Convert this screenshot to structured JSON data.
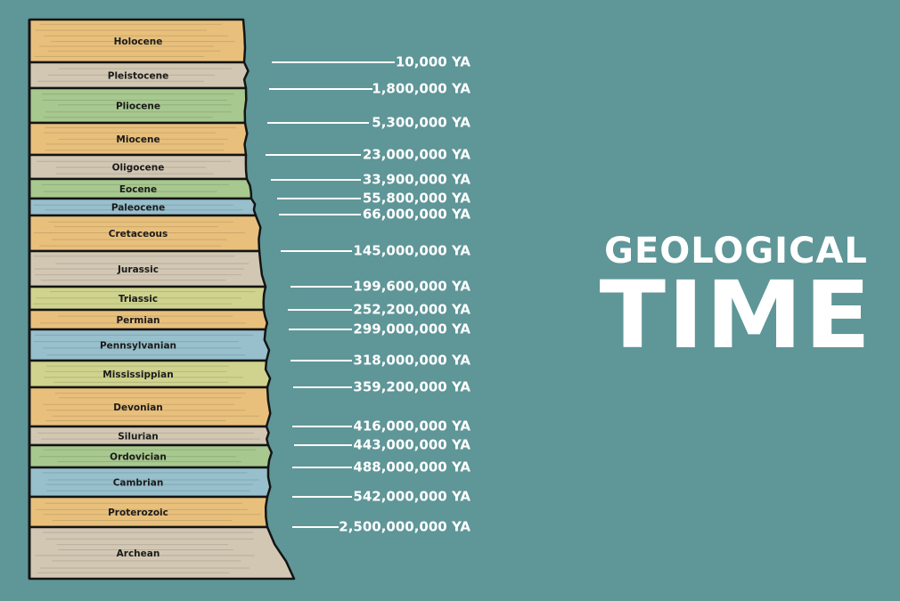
{
  "title": {
    "line1": "GEOLOGICAL",
    "line2": "TIME"
  },
  "colors": {
    "background": "#5f9698",
    "orange": "#e8c07c",
    "gray": "#d2c7b3",
    "green": "#a7c88e",
    "blue": "#97bfcc",
    "olive": "#cfd38d",
    "outline": "#141414",
    "text": "#ffffff"
  },
  "layers": [
    {
      "name": "Holocene",
      "color": "orange"
    },
    {
      "name": "Pleistocene",
      "color": "gray"
    },
    {
      "name": "Pliocene",
      "color": "green"
    },
    {
      "name": "Miocene",
      "color": "orange"
    },
    {
      "name": "Oligocene",
      "color": "gray"
    },
    {
      "name": "Eocene",
      "color": "green"
    },
    {
      "name": "Paleocene",
      "color": "blue"
    },
    {
      "name": "Cretaceous",
      "color": "orange"
    },
    {
      "name": "Jurassic",
      "color": "gray"
    },
    {
      "name": "Triassic",
      "color": "olive"
    },
    {
      "name": "Permian",
      "color": "orange"
    },
    {
      "name": "Pennsylvanian",
      "color": "blue"
    },
    {
      "name": "Mississippian",
      "color": "olive"
    },
    {
      "name": "Devonian",
      "color": "orange"
    },
    {
      "name": "Silurian",
      "color": "gray"
    },
    {
      "name": "Ordovician",
      "color": "green"
    },
    {
      "name": "Cambrian",
      "color": "blue"
    },
    {
      "name": "Proterozoic",
      "color": "orange"
    },
    {
      "name": "Archean",
      "color": "gray"
    }
  ],
  "dates": [
    "10,000 YA",
    "1,800,000 YA",
    "5,300,000 YA",
    "23,000,000 YA",
    "33,900,000 YA",
    "55,800,000 YA",
    "66,000,000 YA",
    "145,000,000 YA",
    "199,600,000 YA",
    "252,200,000 YA",
    "299,000,000 YA",
    "318,000,000 YA",
    "359,200,000 YA",
    "416,000,000 YA",
    "443,000,000 YA",
    "488,000,000 YA",
    "542,000,000 YA",
    "2,500,000,000 YA"
  ]
}
